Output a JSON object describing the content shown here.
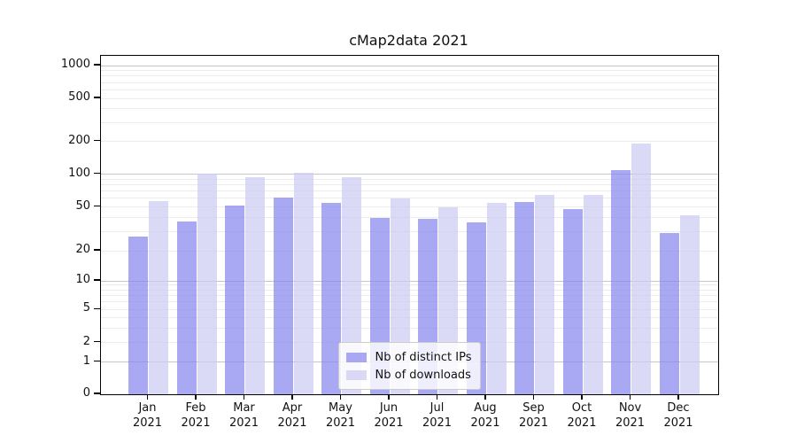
{
  "title": "cMap2data 2021",
  "legend": {
    "items": [
      {
        "label": "Nb of distinct IPs"
      },
      {
        "label": "Nb of downloads"
      }
    ]
  },
  "chart_data": {
    "type": "bar",
    "title": "cMap2data 2021",
    "categories": [
      "Jan 2021",
      "Feb 2021",
      "Mar 2021",
      "Apr 2021",
      "May 2021",
      "Jun 2021",
      "Jul 2021",
      "Aug 2021",
      "Sep 2021",
      "Oct 2021",
      "Nov 2021",
      "Dec 2021"
    ],
    "x_tick_line1": [
      "Jan",
      "Feb",
      "Mar",
      "Apr",
      "May",
      "Jun",
      "Jul",
      "Aug",
      "Sep",
      "Oct",
      "Nov",
      "Dec"
    ],
    "x_tick_line2": "2021",
    "series": [
      {
        "name": "Nb of distinct IPs",
        "color": "#8888ee",
        "alpha": 0.72,
        "values": [
          27,
          37,
          51,
          61,
          54,
          40,
          39,
          36,
          56,
          48,
          108,
          29
        ]
      },
      {
        "name": "Nb of downloads",
        "color": "#ccccf2",
        "alpha": 0.72,
        "values": [
          57,
          101,
          93,
          103,
          94,
          60,
          50,
          54,
          64,
          65,
          192,
          42
        ]
      }
    ],
    "yscale": "symlog",
    "y_ticks": [
      0,
      1,
      2,
      5,
      10,
      20,
      50,
      100,
      200,
      500,
      1000
    ],
    "y_tick_labels": [
      "0",
      "1",
      "2",
      "5",
      "10",
      "20",
      "50",
      "100",
      "200",
      "500",
      "1000"
    ],
    "ylim": [
      0,
      1280
    ],
    "grid": true,
    "legend_position": "lower center",
    "colors": {
      "grid_major": "#c6c6c6",
      "grid_minor": "#ececec",
      "spine": "#000000",
      "background": "#ffffff"
    }
  }
}
